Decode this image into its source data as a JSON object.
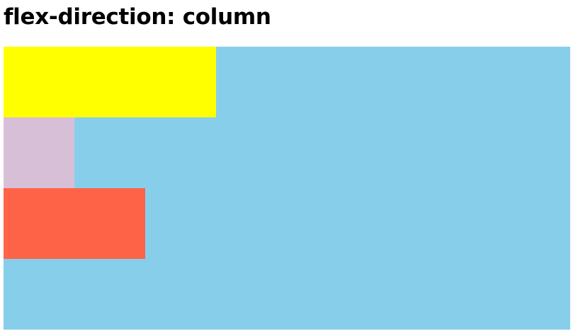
{
  "page": {
    "title": "flex-direction: column"
  },
  "colors": {
    "container": "#87ceeb",
    "item_1": "#ffff00",
    "item_2": "#d8bfd8",
    "item_3": "#ff6347"
  }
}
